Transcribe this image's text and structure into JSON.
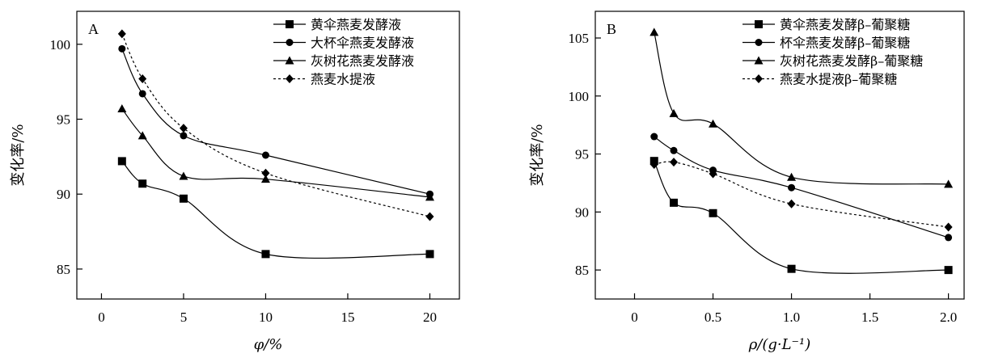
{
  "chart_data": [
    {
      "type": "line",
      "panel_label": "A",
      "xlabel": "φ/%",
      "ylabel": "变化率/%",
      "x_ticks": [
        "0",
        "5",
        "10",
        "15",
        "20"
      ],
      "y_ticks": [
        "85",
        "90",
        "95",
        "100"
      ],
      "xlim": [
        -1.5,
        21.8
      ],
      "ylim": [
        83.0,
        102.2
      ],
      "legend_position": "top-right",
      "series": [
        {
          "name": "黄伞燕麦发酵液",
          "marker": "square",
          "dashed": false,
          "x": [
            1.25,
            2.5,
            5,
            10,
            20
          ],
          "y": [
            92.2,
            90.7,
            89.7,
            86.0,
            86.0
          ]
        },
        {
          "name": "大杯伞燕麦发酵液",
          "marker": "circle",
          "dashed": false,
          "x": [
            1.25,
            2.5,
            5,
            10,
            20
          ],
          "y": [
            99.7,
            96.7,
            93.9,
            92.6,
            90.0
          ]
        },
        {
          "name": "灰树花燕麦发酵液",
          "marker": "triangle",
          "dashed": false,
          "x": [
            1.25,
            2.5,
            5,
            10,
            20
          ],
          "y": [
            95.7,
            93.9,
            91.2,
            91.0,
            89.8
          ]
        },
        {
          "name": "燕麦水提液",
          "marker": "diamond",
          "dashed": true,
          "x": [
            1.25,
            2.5,
            5,
            10,
            20
          ],
          "y": [
            100.7,
            97.7,
            94.4,
            91.4,
            88.5
          ]
        }
      ]
    },
    {
      "type": "line",
      "panel_label": "B",
      "xlabel": "ρ/(g·L⁻¹)",
      "ylabel": "变化率/%",
      "x_ticks": [
        "0",
        "0.5",
        "1.0",
        "1.5",
        "2.0"
      ],
      "y_ticks": [
        "85",
        "90",
        "95",
        "100",
        "105"
      ],
      "xlim": [
        -0.25,
        2.1
      ],
      "ylim": [
        82.5,
        107.3
      ],
      "legend_position": "top-right",
      "series": [
        {
          "name": "黄伞燕麦发酵β–葡聚糖",
          "marker": "square",
          "dashed": false,
          "x": [
            0.125,
            0.25,
            0.5,
            1.0,
            2.0
          ],
          "y": [
            94.4,
            90.8,
            89.9,
            85.1,
            85.0
          ]
        },
        {
          "name": "杯伞燕麦发酵β–葡聚糖",
          "marker": "circle",
          "dashed": false,
          "x": [
            0.125,
            0.25,
            0.5,
            1.0,
            2.0
          ],
          "y": [
            96.5,
            95.3,
            93.6,
            92.1,
            87.8
          ]
        },
        {
          "name": "灰树花燕麦发酵β–葡聚糖",
          "marker": "triangle",
          "dashed": false,
          "x": [
            0.125,
            0.25,
            0.5,
            1.0,
            2.0
          ],
          "y": [
            105.5,
            98.5,
            97.6,
            93.0,
            92.4
          ]
        },
        {
          "name": "燕麦水提液β–葡聚糖",
          "marker": "diamond",
          "dashed": true,
          "x": [
            0.125,
            0.25,
            0.5,
            1.0,
            2.0
          ],
          "y": [
            94.1,
            94.3,
            93.3,
            90.7,
            88.7
          ]
        }
      ]
    }
  ]
}
